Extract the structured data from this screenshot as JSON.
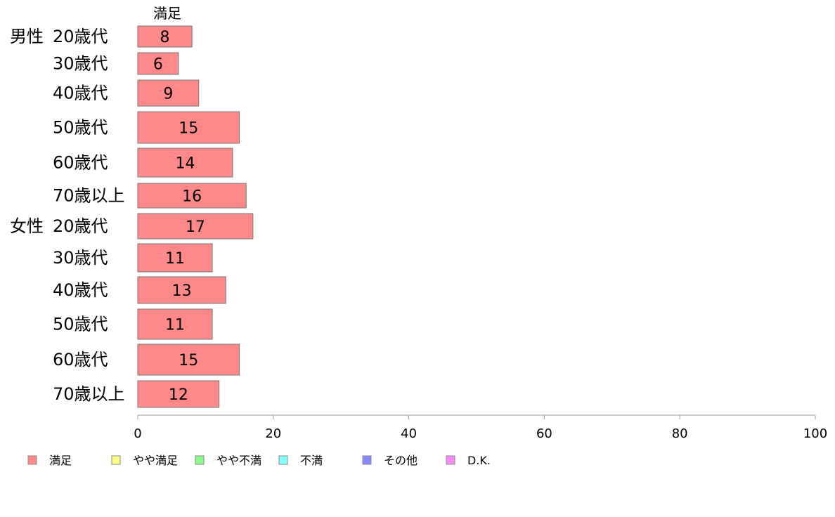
{
  "chart_data": {
    "type": "bar",
    "orientation": "horizontal",
    "stacked": true,
    "series_header": "満足",
    "groups": [
      "男性",
      "女性"
    ],
    "categories": [
      {
        "group": "男性",
        "label": "20歳代"
      },
      {
        "group": "",
        "label": "30歳代"
      },
      {
        "group": "",
        "label": "40歳代"
      },
      {
        "group": "",
        "label": "50歳代"
      },
      {
        "group": "",
        "label": "60歳代"
      },
      {
        "group": "",
        "label": "70歳以上"
      },
      {
        "group": "女性",
        "label": "20歳代"
      },
      {
        "group": "",
        "label": "30歳代"
      },
      {
        "group": "",
        "label": "40歳代"
      },
      {
        "group": "",
        "label": "50歳代"
      },
      {
        "group": "",
        "label": "60歳代"
      },
      {
        "group": "",
        "label": "70歳以上"
      }
    ],
    "series": [
      {
        "name": "満足",
        "color": "#ff8888",
        "values": [
          8,
          6,
          9,
          15,
          14,
          16,
          17,
          11,
          13,
          11,
          15,
          12
        ]
      }
    ],
    "legend": [
      {
        "name": "満足",
        "color": "#ff8888"
      },
      {
        "name": "やや満足",
        "color": "#ffff88"
      },
      {
        "name": "やや不満",
        "color": "#88ff88"
      },
      {
        "name": "不満",
        "color": "#88ffff"
      },
      {
        "name": "その他",
        "color": "#8888ff"
      },
      {
        "name": "D.K.",
        "color": "#ff88ff"
      }
    ],
    "xlim": [
      0,
      100
    ],
    "xticks": [
      0,
      20,
      40,
      60,
      80,
      100
    ],
    "grid": false,
    "legend_position": "bottom-left"
  }
}
